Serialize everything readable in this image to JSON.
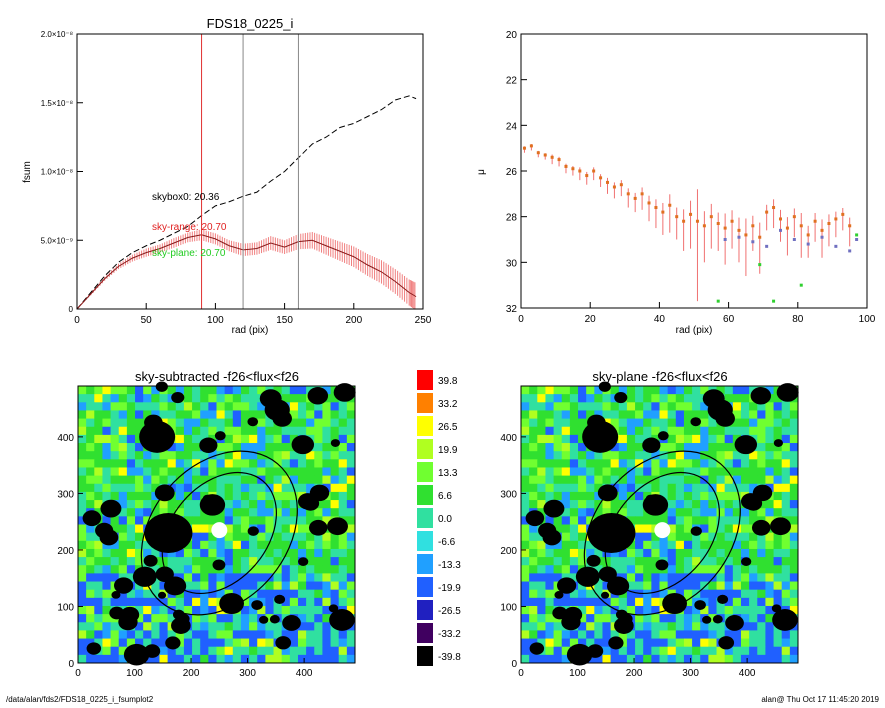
{
  "footer": {
    "left": "/data/alan/fds2/FDS18_0225_i_fsumplot2",
    "right": "alan@  Thu Oct 17 11:45:20 2019"
  },
  "chart_data": [
    {
      "type": "line",
      "title": "FDS18_0225_i",
      "xlabel": "rad (pix)",
      "ylabel": "fsum",
      "xlim": [
        0,
        250
      ],
      "ylim": [
        0,
        2e-08
      ],
      "xticks": [
        "0",
        "50",
        "100",
        "150",
        "200",
        "250"
      ],
      "yticks": [
        "0",
        "5.0×10⁻⁹",
        "1.0×10⁻⁸",
        "1.5×10⁻⁸",
        "2.0×10⁻⁸"
      ],
      "yticks_values": [
        0,
        5e-09,
        1e-08,
        1.5e-08,
        2e-08
      ],
      "vlines": [
        {
          "x": 90,
          "color": "#e03030"
        },
        {
          "x": 120,
          "color": "#888888"
        },
        {
          "x": 160,
          "color": "#888888"
        }
      ],
      "annotations": [
        {
          "text": "skybox0: 20.36",
          "color": "#000000"
        },
        {
          "text": "sky-range: 20.70",
          "color": "#e02020"
        },
        {
          "text": "sky-plane: 20.70",
          "color": "#22cc22"
        }
      ],
      "series": [
        {
          "style": "dashed",
          "color": "#000000",
          "x": [
            0,
            10,
            20,
            30,
            40,
            50,
            60,
            70,
            80,
            90,
            100,
            110,
            120,
            130,
            140,
            150,
            160,
            170,
            180,
            190,
            200,
            210,
            220,
            230,
            240,
            245
          ],
          "y": [
            0,
            1.2e-09,
            2.4e-09,
            3.4e-09,
            4.1e-09,
            4.6e-09,
            5e-09,
            5.5e-09,
            6e-09,
            6.8e-09,
            7.5e-09,
            7.8e-09,
            8.2e-09,
            8.5e-09,
            9.3e-09,
            1e-08,
            1.1e-08,
            1.2e-08,
            1.25e-08,
            1.32e-08,
            1.35e-08,
            1.4e-08,
            1.45e-08,
            1.52e-08,
            1.55e-08,
            1.53e-08
          ]
        },
        {
          "style": "solid",
          "color": "#8b1a1a",
          "errcolor": "#f08080",
          "x": [
            0,
            10,
            20,
            30,
            40,
            50,
            60,
            70,
            80,
            90,
            100,
            110,
            120,
            130,
            140,
            150,
            160,
            170,
            180,
            190,
            200,
            210,
            220,
            230,
            240,
            245
          ],
          "y": [
            0,
            1.1e-09,
            2.2e-09,
            3.1e-09,
            3.7e-09,
            4.1e-09,
            4.4e-09,
            4.8e-09,
            5.2e-09,
            5.4e-09,
            5.1e-09,
            4.6e-09,
            4.3e-09,
            4.4e-09,
            4.8e-09,
            4.5e-09,
            4.9e-09,
            5e-09,
            4.6e-09,
            4.2e-09,
            3.8e-09,
            3.2e-09,
            2.7e-09,
            2e-09,
            1.2e-09,
            9e-10
          ],
          "err": [
            0,
            1e-10,
            1.5e-10,
            2e-10,
            2.5e-10,
            3e-10,
            3e-10,
            3.5e-10,
            3.5e-10,
            4e-10,
            4e-10,
            4e-10,
            4.5e-10,
            4.5e-10,
            5e-10,
            5e-10,
            5.5e-10,
            6e-10,
            6.5e-10,
            7e-10,
            7.5e-10,
            8e-10,
            8.5e-10,
            9e-10,
            9.5e-10,
            1e-09
          ]
        }
      ]
    },
    {
      "type": "scatter",
      "xlabel": "rad (pix)",
      "ylabel": "μ",
      "xlim": [
        0,
        100
      ],
      "ylim": [
        32,
        20
      ],
      "xticks": [
        "0",
        "20",
        "40",
        "60",
        "80",
        "100"
      ],
      "yticks": [
        "20",
        "22",
        "24",
        "26",
        "28",
        "30",
        "32"
      ],
      "series": [
        {
          "color": "#e07020",
          "x": [
            1,
            3,
            5,
            7,
            9,
            11,
            13,
            15,
            17,
            19,
            21,
            23,
            25,
            27,
            29,
            31,
            33,
            35,
            37,
            39,
            41,
            43,
            45,
            47,
            49,
            51,
            53,
            55,
            57,
            59,
            61,
            63,
            65,
            67,
            69,
            71,
            73,
            75,
            77,
            79,
            81,
            83,
            85,
            87,
            89,
            91,
            93,
            95
          ],
          "y": [
            25.0,
            24.9,
            25.2,
            25.3,
            25.4,
            25.5,
            25.8,
            25.9,
            26.0,
            26.2,
            26.0,
            26.3,
            26.5,
            26.7,
            26.6,
            27.0,
            27.2,
            27.0,
            27.4,
            27.6,
            27.8,
            27.5,
            28.0,
            28.2,
            27.9,
            28.2,
            28.4,
            28.0,
            28.3,
            28.5,
            28.2,
            28.6,
            28.8,
            28.4,
            28.9,
            27.8,
            27.6,
            28.1,
            28.5,
            28.0,
            28.4,
            28.8,
            28.2,
            28.6,
            28.3,
            28.1,
            27.9,
            28.4
          ],
          "err": [
            0.2,
            0.2,
            0.2,
            0.2,
            0.3,
            0.3,
            0.3,
            0.3,
            0.4,
            0.4,
            0.4,
            0.4,
            0.5,
            0.5,
            0.5,
            0.6,
            0.6,
            0.7,
            0.8,
            0.9,
            1.0,
            1.2,
            1.0,
            1.3,
            1.5,
            3.5,
            1.6,
            1.4,
            1.2,
            1.6,
            1.2,
            1.4,
            1.8,
            1.1,
            1.6,
            0.8,
            0.9,
            1.0,
            1.2,
            0.9,
            1.4,
            1.0,
            0.9,
            1.2,
            1.0,
            0.8,
            0.7,
            0.9
          ]
        },
        {
          "color": "#7070c0",
          "x": [
            59,
            63,
            67,
            71,
            75,
            79,
            83,
            87,
            91,
            95,
            97
          ],
          "y": [
            29.0,
            28.9,
            29.1,
            29.3,
            28.6,
            29.0,
            29.2,
            28.9,
            29.3,
            29.5,
            29.0
          ]
        },
        {
          "color": "#30d030",
          "x": [
            57,
            69,
            73,
            81,
            97
          ],
          "y": [
            31.7,
            30.1,
            31.7,
            31.0,
            28.8
          ]
        }
      ]
    },
    {
      "type": "heatmap",
      "title": "sky-subtracted -f26<flux<f26",
      "xlim": [
        0,
        490
      ],
      "ylim": [
        0,
        490
      ],
      "xticks": [
        "0",
        "100",
        "200",
        "300",
        "400"
      ],
      "yticks": [
        "0",
        "100",
        "200",
        "300",
        "400"
      ],
      "ellipses": [
        {
          "cx": 250,
          "cy": 230,
          "rx": 120,
          "ry": 85,
          "angle": -50
        },
        {
          "cx": 250,
          "cy": 230,
          "rx": 160,
          "ry": 120,
          "angle": -50
        }
      ]
    },
    {
      "type": "heatmap",
      "title": "sky-plane -f26<flux<f26",
      "xlim": [
        0,
        490
      ],
      "ylim": [
        0,
        490
      ],
      "xticks": [
        "0",
        "100",
        "200",
        "300",
        "400"
      ],
      "yticks": [
        "0",
        "100",
        "200",
        "300",
        "400"
      ],
      "ellipses": [
        {
          "cx": 250,
          "cy": 230,
          "rx": 120,
          "ry": 85,
          "angle": -50
        },
        {
          "cx": 250,
          "cy": 230,
          "rx": 160,
          "ry": 120,
          "angle": -50
        }
      ]
    }
  ],
  "colorbar": {
    "labels": [
      "39.8",
      "33.2",
      "26.5",
      "19.9",
      "13.3",
      "6.6",
      "0.0",
      "-6.6",
      "-13.3",
      "-19.9",
      "-26.5",
      "-33.2",
      "-39.8"
    ],
    "colors": [
      "#ff0000",
      "#ff8000",
      "#ffff00",
      "#b0ff20",
      "#70ff30",
      "#30e030",
      "#30e0a0",
      "#30e0e0",
      "#20a0ff",
      "#2060ff",
      "#2020c0",
      "#400060",
      "#000000"
    ]
  }
}
